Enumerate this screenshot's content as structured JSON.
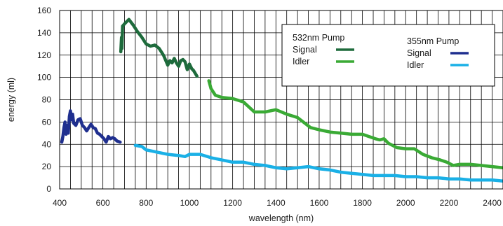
{
  "chart_data": {
    "type": "line",
    "title": "",
    "xlabel": "wavelength (nm)",
    "ylabel": "energy (ml)",
    "xlim": [
      400,
      2450
    ],
    "ylim": [
      0,
      160
    ],
    "xticks": [
      400,
      600,
      800,
      1000,
      1200,
      1400,
      1600,
      1800,
      2000,
      2200,
      2400
    ],
    "yticks": [
      0,
      20,
      40,
      60,
      80,
      100,
      120,
      140,
      160
    ],
    "grid": true,
    "legend_position": "top-right",
    "legend": {
      "groups": [
        {
          "title": "532nm Pump",
          "entries": [
            {
              "label": "Signal",
              "series_index": 0
            },
            {
              "label": "Idler",
              "series_index": 1
            }
          ]
        },
        {
          "title": "355nm Pump",
          "entries": [
            {
              "label": "Signal",
              "series_index": 2
            },
            {
              "label": "Idler",
              "series_index": 3
            }
          ]
        }
      ]
    },
    "series": [
      {
        "pump": "532nm Pump",
        "name": "Signal",
        "color": "#1e6b3c",
        "points": [
          [
            683,
            123
          ],
          [
            686,
            136
          ],
          [
            688,
            126
          ],
          [
            691,
            146
          ],
          [
            700,
            148
          ],
          [
            720,
            152
          ],
          [
            740,
            147
          ],
          [
            760,
            141
          ],
          [
            780,
            136
          ],
          [
            800,
            130
          ],
          [
            820,
            128
          ],
          [
            840,
            129
          ],
          [
            860,
            126
          ],
          [
            880,
            120
          ],
          [
            900,
            111
          ],
          [
            910,
            115
          ],
          [
            920,
            113
          ],
          [
            930,
            117
          ],
          [
            940,
            113
          ],
          [
            950,
            110
          ],
          [
            960,
            115
          ],
          [
            970,
            116
          ],
          [
            980,
            114
          ],
          [
            990,
            107
          ],
          [
            1000,
            112
          ],
          [
            1010,
            108
          ],
          [
            1020,
            106
          ],
          [
            1035,
            101
          ]
        ]
      },
      {
        "pump": "532nm Pump",
        "name": "Idler",
        "color": "#3aaa35",
        "points": [
          [
            1090,
            97
          ],
          [
            1100,
            90
          ],
          [
            1120,
            84
          ],
          [
            1150,
            82
          ],
          [
            1200,
            81
          ],
          [
            1250,
            78
          ],
          [
            1300,
            69
          ],
          [
            1350,
            69
          ],
          [
            1400,
            71
          ],
          [
            1450,
            67
          ],
          [
            1500,
            64
          ],
          [
            1540,
            58
          ],
          [
            1560,
            55
          ],
          [
            1600,
            53
          ],
          [
            1650,
            51
          ],
          [
            1700,
            50
          ],
          [
            1750,
            49
          ],
          [
            1800,
            49
          ],
          [
            1830,
            47
          ],
          [
            1860,
            45
          ],
          [
            1880,
            44
          ],
          [
            1900,
            45
          ],
          [
            1920,
            41
          ],
          [
            1960,
            37
          ],
          [
            2000,
            36
          ],
          [
            2040,
            36
          ],
          [
            2080,
            31
          ],
          [
            2120,
            28
          ],
          [
            2160,
            26
          ],
          [
            2190,
            24
          ],
          [
            2220,
            21
          ],
          [
            2250,
            22
          ],
          [
            2300,
            22
          ],
          [
            2350,
            21
          ],
          [
            2400,
            20
          ],
          [
            2450,
            19
          ]
        ]
      },
      {
        "pump": "355nm Pump",
        "name": "Signal",
        "color": "#1f2f8f",
        "points": [
          [
            410,
            42
          ],
          [
            415,
            47
          ],
          [
            420,
            55
          ],
          [
            425,
            60
          ],
          [
            430,
            49
          ],
          [
            435,
            57
          ],
          [
            440,
            50
          ],
          [
            445,
            65
          ],
          [
            450,
            70
          ],
          [
            455,
            62
          ],
          [
            460,
            67
          ],
          [
            465,
            59
          ],
          [
            475,
            57
          ],
          [
            485,
            62
          ],
          [
            495,
            63
          ],
          [
            505,
            57
          ],
          [
            515,
            55
          ],
          [
            525,
            52
          ],
          [
            535,
            55
          ],
          [
            545,
            58
          ],
          [
            555,
            55
          ],
          [
            565,
            54
          ],
          [
            575,
            50
          ],
          [
            585,
            49
          ],
          [
            595,
            47
          ],
          [
            605,
            45
          ],
          [
            615,
            42
          ],
          [
            625,
            47
          ],
          [
            635,
            45
          ],
          [
            645,
            46
          ],
          [
            655,
            45
          ],
          [
            665,
            43
          ],
          [
            680,
            42
          ]
        ]
      },
      {
        "pump": "355nm Pump",
        "name": "Idler",
        "color": "#1ab0e6",
        "points": [
          [
            750,
            39
          ],
          [
            780,
            38
          ],
          [
            800,
            35
          ],
          [
            850,
            33
          ],
          [
            900,
            31
          ],
          [
            950,
            30
          ],
          [
            980,
            29
          ],
          [
            1000,
            31
          ],
          [
            1050,
            31
          ],
          [
            1100,
            28
          ],
          [
            1150,
            26
          ],
          [
            1200,
            24
          ],
          [
            1250,
            24
          ],
          [
            1300,
            22
          ],
          [
            1350,
            21
          ],
          [
            1400,
            19
          ],
          [
            1450,
            18
          ],
          [
            1500,
            19
          ],
          [
            1550,
            20
          ],
          [
            1600,
            18
          ],
          [
            1650,
            17
          ],
          [
            1700,
            15
          ],
          [
            1750,
            14
          ],
          [
            1800,
            13
          ],
          [
            1850,
            12
          ],
          [
            1900,
            12
          ],
          [
            1950,
            12
          ],
          [
            2000,
            11
          ],
          [
            2050,
            11
          ],
          [
            2100,
            10
          ],
          [
            2150,
            10
          ],
          [
            2200,
            9
          ],
          [
            2250,
            9
          ],
          [
            2300,
            8
          ],
          [
            2350,
            8
          ],
          [
            2400,
            8
          ],
          [
            2450,
            7
          ]
        ]
      }
    ]
  }
}
